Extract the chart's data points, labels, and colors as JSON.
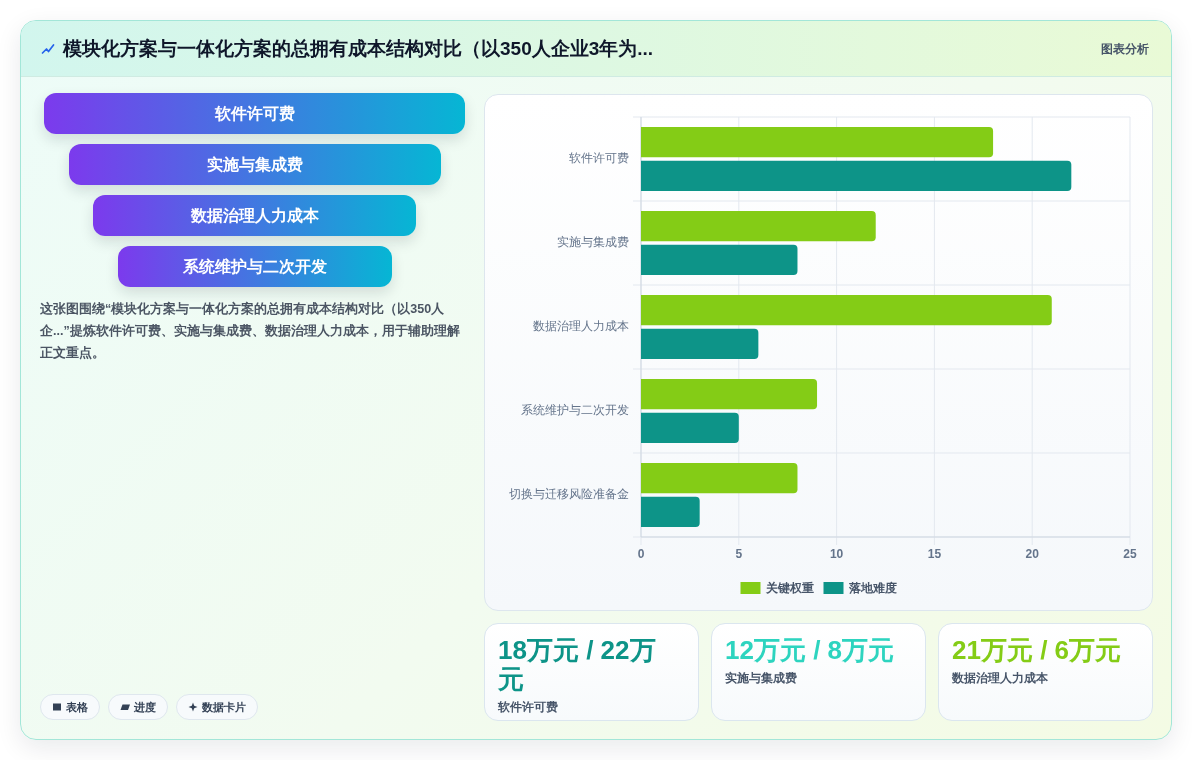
{
  "chart_data": [
    {
      "type": "other",
      "title": "模块化方案与一体化方案的总拥有成本结构对比（以350人企业3年为...",
      "annotations": [
        "图表分析"
      ]
    },
    {
      "type": "other",
      "categories": [
        "软件许可费",
        "实施与集成费",
        "数据治理人力成本",
        "系统维护与二次开发"
      ],
      "annotations": [
        "这张图围绕“模块化方案与一体化方案的总拥有成本结构对比（以350人企...”提炼软件许可费、实施与集成费、数据治理人力成本，用于辅助理解正文重点。",
        "表格",
        "进度",
        "数据卡片"
      ]
    },
    {
      "type": "bar",
      "orientation": "horizontal",
      "categories": [
        "软件许可费",
        "实施与集成费",
        "数据治理人力成本",
        "系统维护与二次开发",
        "切换与迁移风险准备金"
      ],
      "series": [
        {
          "name": "关键权重",
          "color": "#84cc16",
          "values": [
            18,
            12,
            21,
            9,
            8
          ]
        },
        {
          "name": "落地难度",
          "color": "#0d9488",
          "values": [
            22,
            8,
            6,
            5,
            3
          ]
        }
      ],
      "xlim": [
        0,
        25
      ],
      "xticks": [
        0,
        5,
        10,
        15,
        20,
        25
      ],
      "grid": true,
      "legend": "bottom"
    },
    {
      "type": "other",
      "categories": [
        "软件许可费",
        "实施与集成费",
        "数据治理人力成本"
      ],
      "value_labels": [
        "18万元 / 22万元",
        "12万元 / 8万元",
        "21万元 / 6万元"
      ],
      "colors": [
        "#0d9488",
        "#2dd4bf",
        "#84cc16"
      ]
    }
  ]
}
